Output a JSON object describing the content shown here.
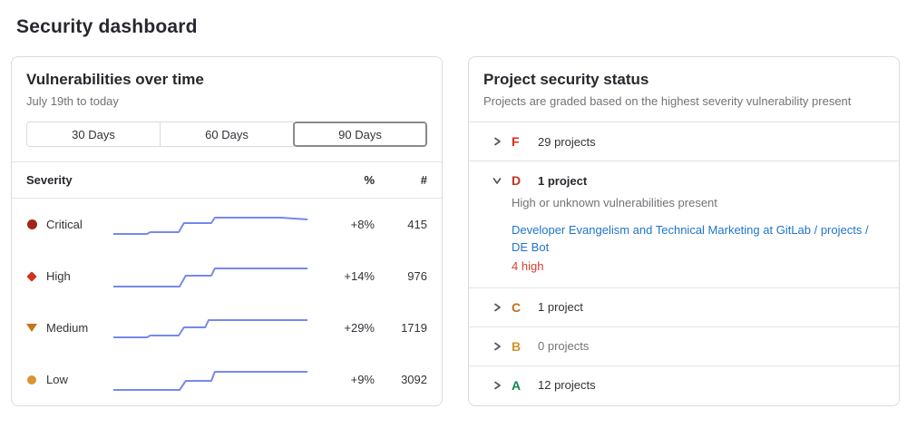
{
  "page": {
    "title": "Security dashboard"
  },
  "colors": {
    "sparkline": "#7689ec",
    "card_border": "#dbdbdb",
    "link": "#1f75cb",
    "danger_text": "#d2402f"
  },
  "vuln_card": {
    "title": "Vulnerabilities over time",
    "subtitle": "July 19th to today",
    "range_buttons": [
      {
        "label": "30 Days",
        "selected": false
      },
      {
        "label": "60 Days",
        "selected": false
      },
      {
        "label": "90 Days",
        "selected": true
      }
    ],
    "table": {
      "severity_header": "Severity",
      "pct_header": "%",
      "count_header": "#",
      "rows": [
        {
          "label": "Critical",
          "icon": "circle",
          "color": "#a12817",
          "pct": "+8%",
          "count": "415"
        },
        {
          "label": "High",
          "icon": "diamond",
          "color": "#d2321c",
          "pct": "+14%",
          "count": "976"
        },
        {
          "label": "Medium",
          "icon": "triangle-down",
          "color": "#c97417",
          "pct": "+29%",
          "count": "1719"
        },
        {
          "label": "Low",
          "icon": "circle",
          "color": "#d99530",
          "pct": "+9%",
          "count": "3092"
        }
      ]
    }
  },
  "chart_data": {
    "type": "line",
    "title": "Vulnerabilities over time",
    "x_range": "July 19th to today (90 days)",
    "line_color": "#7689ec",
    "legend_position": "none",
    "grid": false,
    "series": [
      {
        "name": "Critical",
        "pct_change": "+8%",
        "current_count": 415
      },
      {
        "name": "High",
        "pct_change": "+14%",
        "current_count": 976
      },
      {
        "name": "Medium",
        "pct_change": "+29%",
        "current_count": 1719
      },
      {
        "name": "Low",
        "pct_change": "+9%",
        "current_count": 3092
      }
    ],
    "sparklines": [
      {
        "name": "Critical",
        "points": [
          [
            0,
            30
          ],
          [
            38,
            30
          ],
          [
            42,
            28
          ],
          [
            74,
            28
          ],
          [
            80,
            18
          ],
          [
            111,
            18
          ],
          [
            115,
            12
          ],
          [
            190,
            12
          ],
          [
            220,
            14
          ]
        ]
      },
      {
        "name": "High",
        "points": [
          [
            0,
            31
          ],
          [
            75,
            31
          ],
          [
            82,
            19
          ],
          [
            111,
            19
          ],
          [
            115,
            11
          ],
          [
            220,
            11
          ]
        ]
      },
      {
        "name": "Medium",
        "points": [
          [
            0,
            30
          ],
          [
            38,
            30
          ],
          [
            42,
            28
          ],
          [
            74,
            28
          ],
          [
            80,
            19
          ],
          [
            104,
            19
          ],
          [
            108,
            11
          ],
          [
            220,
            11
          ]
        ]
      },
      {
        "name": "Low",
        "points": [
          [
            0,
            31
          ],
          [
            75,
            31
          ],
          [
            82,
            21
          ],
          [
            111,
            21
          ],
          [
            115,
            11
          ],
          [
            220,
            11
          ]
        ]
      }
    ]
  },
  "status_card": {
    "title": "Project security status",
    "subtitle": "Projects are graded based on the highest severity vulnerability present",
    "grades": [
      {
        "letter": "F",
        "color": "#dd2b0e",
        "count_label": "29 projects",
        "expanded": false
      },
      {
        "letter": "D",
        "color": "#c0341d",
        "count_label": "1 project",
        "expanded": true,
        "description": "High or unknown vulnerabilities present",
        "project_link": "Developer Evangelism and Technical Marketing at GitLab / projects / DE Bot",
        "vuln_summary": "4 high"
      },
      {
        "letter": "C",
        "color": "#c16d1a",
        "count_label": "1 project",
        "expanded": false
      },
      {
        "letter": "B",
        "color": "#d0932e",
        "count_label": "0 projects",
        "expanded": false
      },
      {
        "letter": "A",
        "color": "#108548",
        "count_label": "12 projects",
        "expanded": false
      }
    ]
  }
}
